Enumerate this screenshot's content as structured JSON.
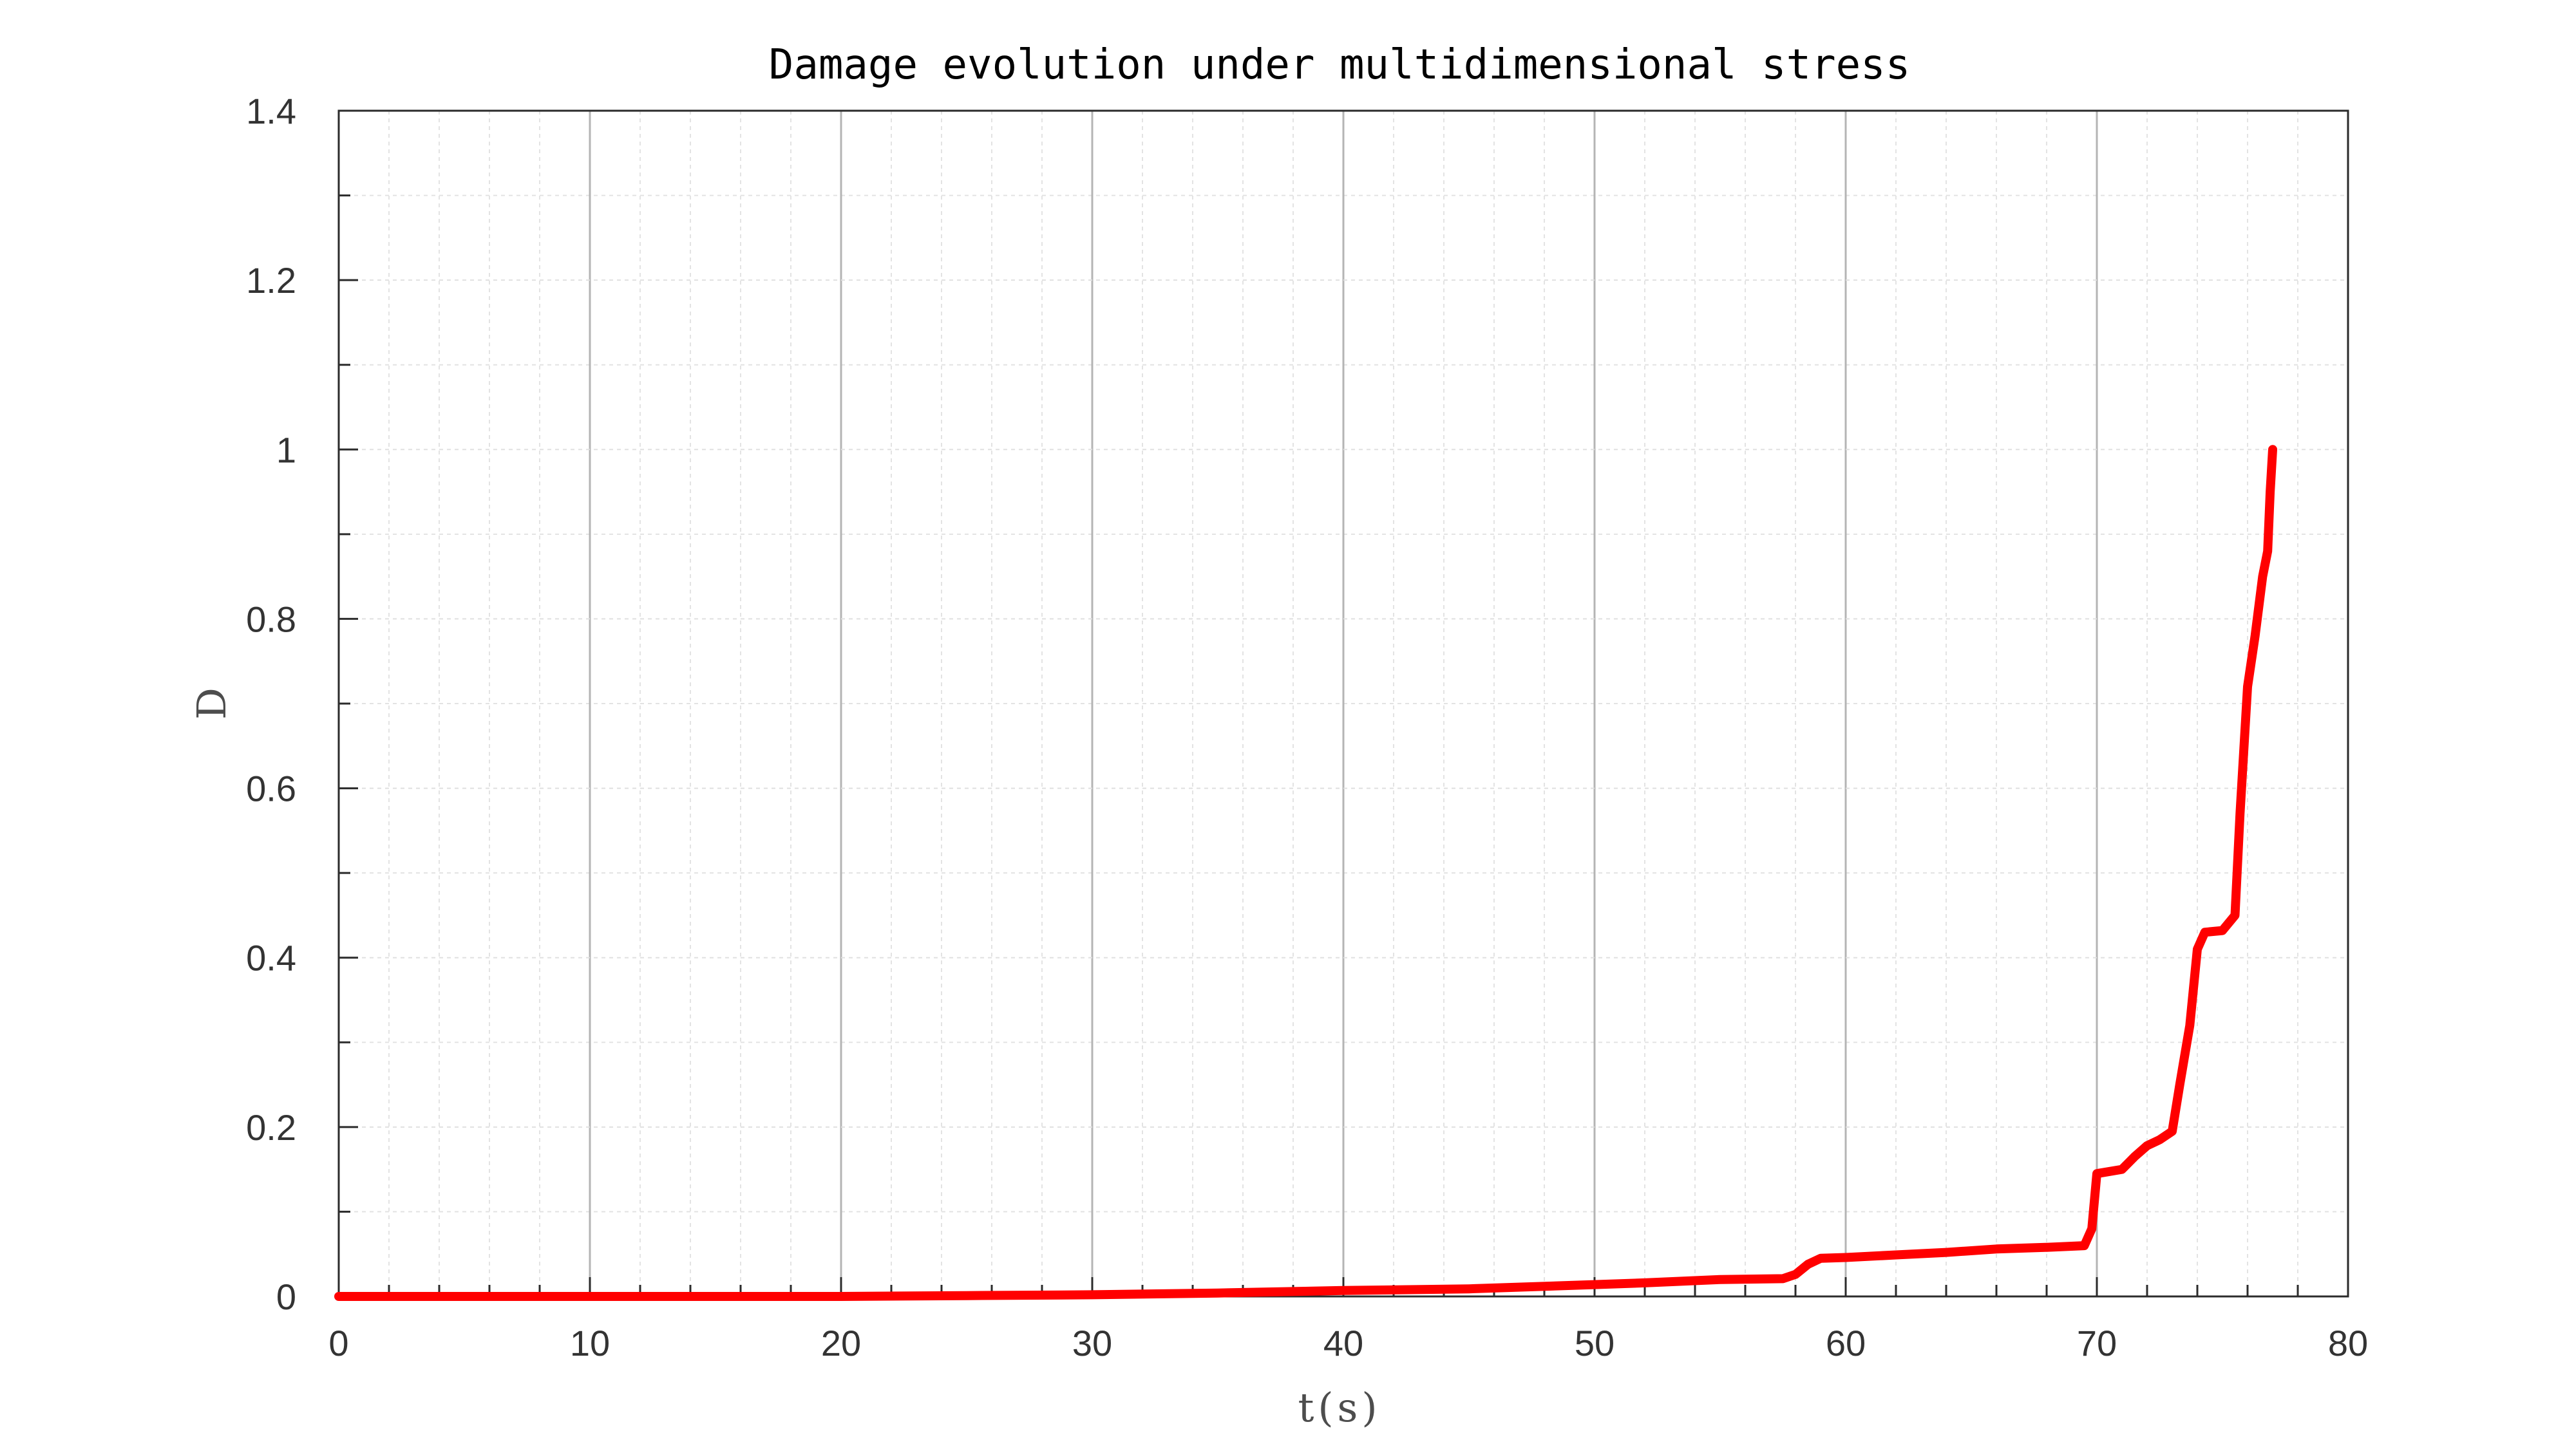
{
  "chart_data": {
    "type": "line",
    "title": "Damage evolution under multidimensional stress",
    "xlabel": "t(s)",
    "ylabel": "D",
    "xlim": [
      0,
      80
    ],
    "ylim": [
      0,
      1.4
    ],
    "x_ticks": [
      "0",
      "10",
      "20",
      "30",
      "40",
      "50",
      "60",
      "70",
      "80"
    ],
    "y_ticks": [
      "0",
      "0.2",
      "0.4",
      "0.6",
      "0.8",
      "1",
      "1.2",
      "1.4"
    ],
    "x_tick_values": [
      0,
      10,
      20,
      30,
      40,
      50,
      60,
      70,
      80
    ],
    "y_tick_values": [
      0,
      0.2,
      0.4,
      0.6,
      0.8,
      1.0,
      1.2,
      1.4
    ],
    "grid": true,
    "minor_grid": true,
    "legend": "none",
    "line_color": "#ff0000",
    "series": [
      {
        "name": "",
        "x": [
          0,
          5,
          10,
          15,
          20,
          25,
          30,
          35,
          40,
          45,
          50,
          52,
          55,
          57.5,
          58,
          58.5,
          59,
          60,
          62,
          64,
          66,
          68,
          69.5,
          69.8,
          70,
          71,
          71.5,
          72,
          72.5,
          73,
          73.3,
          73.7,
          74,
          74.3,
          75,
          75.5,
          75.7,
          76,
          76.3,
          76.6,
          76.8,
          76.9,
          77
        ],
        "y": [
          0,
          0,
          0,
          0,
          0,
          0.001,
          0.002,
          0.004,
          0.007,
          0.009,
          0.014,
          0.016,
          0.02,
          0.021,
          0.026,
          0.038,
          0.045,
          0.046,
          0.049,
          0.052,
          0.056,
          0.058,
          0.06,
          0.08,
          0.145,
          0.15,
          0.165,
          0.178,
          0.185,
          0.195,
          0.25,
          0.32,
          0.41,
          0.43,
          0.432,
          0.45,
          0.57,
          0.72,
          0.78,
          0.85,
          0.88,
          0.95,
          1.0
        ]
      }
    ]
  }
}
